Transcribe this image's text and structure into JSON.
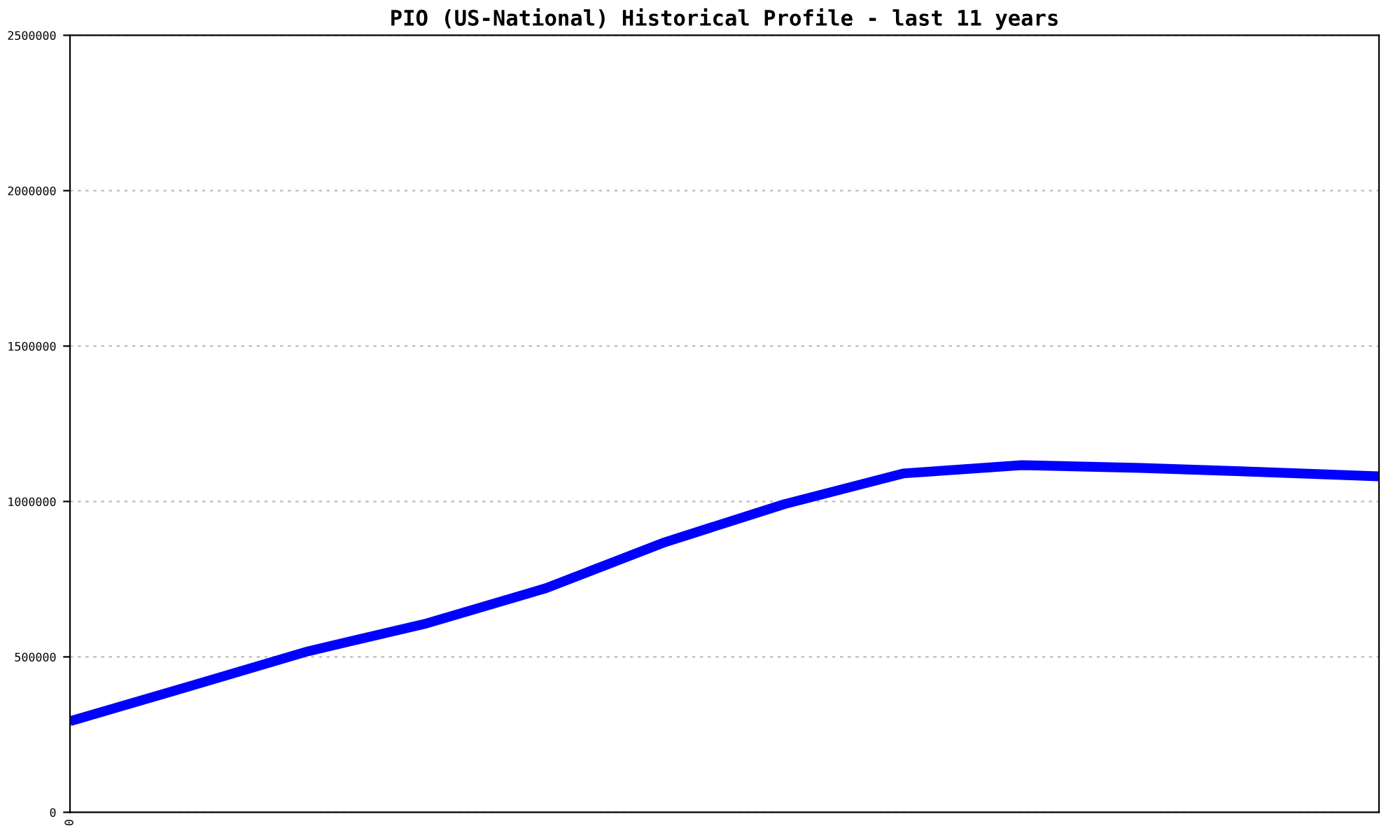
{
  "chart_data": {
    "type": "line",
    "title": "PIO (US-National) Historical Profile - last 11 years",
    "categories": [
      "0",
      null,
      null,
      null,
      null,
      null,
      null,
      null,
      null,
      null,
      null,
      null
    ],
    "series": [
      {
        "color": "#0000ff",
        "values": [
          293000,
          405000,
          518000,
          608000,
          721000,
          869000,
          991000,
          1090000,
          1117000,
          1108000,
          1095000,
          1081000
        ]
      }
    ],
    "ylim": [
      0,
      2500000
    ],
    "yticks": [
      0,
      500000,
      1000000,
      1500000,
      2000000,
      2500000
    ],
    "grid": "y",
    "legend": false,
    "marker": "none",
    "line_style": "solid"
  }
}
